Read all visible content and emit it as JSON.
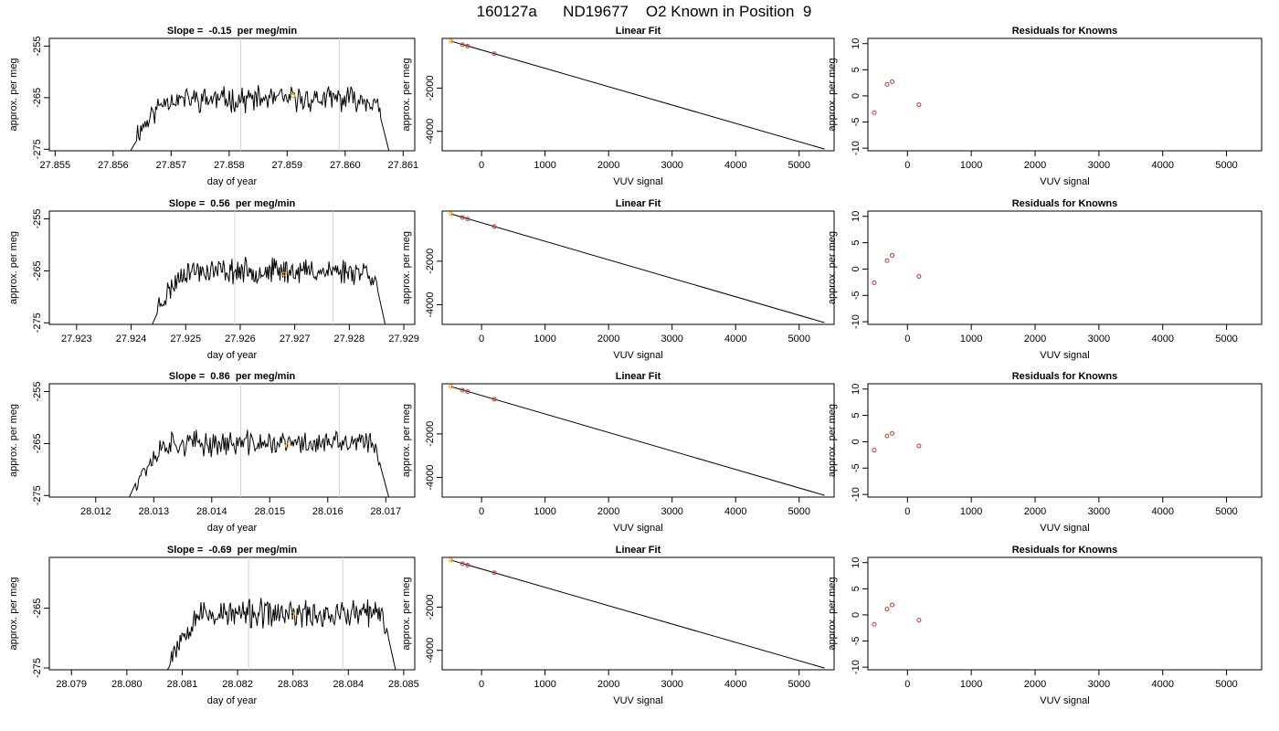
{
  "figure": {
    "title": "160127a      ND19677    O2 Known in Position  9"
  },
  "colors": {
    "trace": "#000000",
    "marker_window": "#d3d3d3",
    "current_point": "#ffa500",
    "known_point": "#c0392b",
    "axes": "#000000"
  },
  "chart_data": [
    {
      "type": "line",
      "row": 1,
      "title": "Slope =  -0.15  per meg/min",
      "xlabel": "day of year",
      "ylabel": "approx. per meg",
      "xlim": [
        27.8549,
        27.8612
      ],
      "ylim": [
        -275.3,
        -253.5
      ],
      "x_ticks": [
        "27.855",
        "27.856",
        "27.857",
        "27.858",
        "27.859",
        "27.860",
        "27.861"
      ],
      "y_ticks": [
        "-255",
        "-265",
        "-275"
      ],
      "trace_start": 27.8562,
      "trace_end": 27.8608,
      "trace_level": -265.3,
      "trace_amplitude": 1.9,
      "seed": 11,
      "window_lines": [
        27.8582,
        27.8599
      ],
      "current_point": {
        "x": 27.8591,
        "y": -264.6
      }
    },
    {
      "type": "scatter",
      "row": 1,
      "title": "Linear Fit",
      "xlabel": "VUV signal",
      "ylabel": "approx. per meg",
      "xlim": [
        -620,
        5550
      ],
      "ylim": [
        -4900,
        300
      ],
      "x_ticks": [
        "0",
        "1000",
        "2000",
        "3000",
        "4000",
        "5000"
      ],
      "y_ticks": [
        "-2000",
        "-4000"
      ],
      "fit_line": {
        "x": [
          -480,
          5400
        ],
        "y": [
          170,
          -4820
        ]
      },
      "points": [
        {
          "x": -480,
          "y": 170,
          "current": true
        },
        {
          "x": -300,
          "y": 5
        },
        {
          "x": -220,
          "y": -60
        },
        {
          "x": 200,
          "y": -410
        }
      ]
    },
    {
      "type": "scatter",
      "row": 1,
      "title": "Residuals for Knowns",
      "xlabel": "VUV signal",
      "ylabel": "approx. per meg",
      "xlim": [
        -620,
        5550
      ],
      "ylim": [
        -10.5,
        11
      ],
      "x_ticks": [
        "0",
        "1000",
        "2000",
        "3000",
        "4000",
        "5000"
      ],
      "y_ticks": [
        "10",
        "5",
        "0",
        "-5",
        "-10"
      ],
      "points": [
        {
          "x": -520,
          "y": -3.2
        },
        {
          "x": -320,
          "y": 2.2
        },
        {
          "x": -240,
          "y": 2.7
        },
        {
          "x": 180,
          "y": -1.7
        }
      ]
    },
    {
      "type": "line",
      "row": 2,
      "title": "Slope =  0.56  per meg/min",
      "xlabel": "day of year",
      "ylabel": "approx. per meg",
      "xlim": [
        27.9225,
        27.9292
      ],
      "ylim": [
        -275.3,
        -253.5
      ],
      "x_ticks": [
        "27.923",
        "27.924",
        "27.925",
        "27.926",
        "27.927",
        "27.928",
        "27.929"
      ],
      "y_ticks": [
        "-255",
        "-265",
        "-275"
      ],
      "trace_start": 27.9243,
      "trace_end": 27.9287,
      "trace_level": -265.0,
      "trace_amplitude": 1.9,
      "seed": 23,
      "window_lines": [
        27.9259,
        27.9277
      ],
      "current_point": {
        "x": 27.9268,
        "y": -265.6
      }
    },
    {
      "type": "scatter",
      "row": 2,
      "title": "Linear Fit",
      "xlabel": "VUV signal",
      "ylabel": "approx. per meg",
      "xlim": [
        -620,
        5550
      ],
      "ylim": [
        -4900,
        300
      ],
      "x_ticks": [
        "0",
        "1000",
        "2000",
        "3000",
        "4000",
        "5000"
      ],
      "y_ticks": [
        "-2000",
        "-4000"
      ],
      "fit_line": {
        "x": [
          -480,
          5400
        ],
        "y": [
          170,
          -4820
        ]
      },
      "points": [
        {
          "x": -480,
          "y": 170,
          "current": true
        },
        {
          "x": -300,
          "y": 5
        },
        {
          "x": -220,
          "y": -60
        },
        {
          "x": 200,
          "y": -410
        }
      ]
    },
    {
      "type": "scatter",
      "row": 2,
      "title": "Residuals for Knowns",
      "xlabel": "VUV signal",
      "ylabel": "approx. per meg",
      "xlim": [
        -620,
        5550
      ],
      "ylim": [
        -10.5,
        11
      ],
      "x_ticks": [
        "0",
        "1000",
        "2000",
        "3000",
        "4000",
        "5000"
      ],
      "y_ticks": [
        "10",
        "5",
        "0",
        "-5",
        "-10"
      ],
      "points": [
        {
          "x": -520,
          "y": -2.6
        },
        {
          "x": -320,
          "y": 1.6
        },
        {
          "x": -240,
          "y": 2.6
        },
        {
          "x": 180,
          "y": -1.4
        }
      ]
    },
    {
      "type": "line",
      "row": 3,
      "title": "Slope =  0.86  per meg/min",
      "xlabel": "day of year",
      "ylabel": "approx. per meg",
      "xlim": [
        28.0112,
        28.0175
      ],
      "ylim": [
        -275.3,
        -253.5
      ],
      "x_ticks": [
        "28.012",
        "28.013",
        "28.014",
        "28.015",
        "28.016",
        "28.017"
      ],
      "y_ticks": [
        "-255",
        "-265",
        "-275"
      ],
      "trace_start": 28.0125,
      "trace_end": 28.0171,
      "trace_level": -265.0,
      "trace_amplitude": 1.9,
      "seed": 37,
      "window_lines": [
        28.0145,
        28.0162
      ],
      "current_point": {
        "x": 28.0153,
        "y": -265.4
      }
    },
    {
      "type": "scatter",
      "row": 3,
      "title": "Linear Fit",
      "xlabel": "VUV signal",
      "ylabel": "approx. per meg",
      "xlim": [
        -620,
        5550
      ],
      "ylim": [
        -4900,
        300
      ],
      "x_ticks": [
        "0",
        "1000",
        "2000",
        "3000",
        "4000",
        "5000"
      ],
      "y_ticks": [
        "-2000",
        "-4000"
      ],
      "fit_line": {
        "x": [
          -480,
          5400
        ],
        "y": [
          170,
          -4820
        ]
      },
      "points": [
        {
          "x": -480,
          "y": 170,
          "current": true
        },
        {
          "x": -300,
          "y": 5
        },
        {
          "x": -220,
          "y": -60
        },
        {
          "x": 200,
          "y": -410
        }
      ]
    },
    {
      "type": "scatter",
      "row": 3,
      "title": "Residuals for Knowns",
      "xlabel": "VUV signal",
      "ylabel": "approx. per meg",
      "xlim": [
        -620,
        5550
      ],
      "ylim": [
        -10.5,
        11
      ],
      "x_ticks": [
        "0",
        "1000",
        "2000",
        "3000",
        "4000",
        "5000"
      ],
      "y_ticks": [
        "10",
        "5",
        "0",
        "-5",
        "-10"
      ],
      "points": [
        {
          "x": -520,
          "y": -1.6
        },
        {
          "x": -320,
          "y": 1.1
        },
        {
          "x": -240,
          "y": 1.6
        },
        {
          "x": 180,
          "y": -0.8
        }
      ]
    },
    {
      "type": "line",
      "row": 4,
      "title": "Slope =  -0.69  per meg/min",
      "xlabel": "day of year",
      "ylabel": "approx. per meg",
      "xlim": [
        28.0786,
        28.0852
      ],
      "ylim": [
        -275.3,
        -256.5
      ],
      "x_ticks": [
        "28.079",
        "28.080",
        "28.081",
        "28.082",
        "28.083",
        "28.084",
        "28.085"
      ],
      "y_ticks": [
        "-265",
        "-275"
      ],
      "trace_start": 28.0806,
      "trace_end": 28.0849,
      "trace_level": -266.0,
      "trace_amplitude": 1.9,
      "seed": 53,
      "window_lines": [
        28.0822,
        28.0839
      ],
      "current_point": {
        "x": 28.083,
        "y": -266.0
      }
    },
    {
      "type": "scatter",
      "row": 4,
      "title": "Linear Fit",
      "xlabel": "VUV signal",
      "ylabel": "approx. per meg",
      "xlim": [
        -620,
        5550
      ],
      "ylim": [
        -4900,
        300
      ],
      "x_ticks": [
        "0",
        "1000",
        "2000",
        "3000",
        "4000",
        "5000"
      ],
      "y_ticks": [
        "-2000",
        "-4000"
      ],
      "fit_line": {
        "x": [
          -480,
          5400
        ],
        "y": [
          170,
          -4820
        ]
      },
      "points": [
        {
          "x": -480,
          "y": 170,
          "current": true
        },
        {
          "x": -300,
          "y": 5
        },
        {
          "x": -220,
          "y": -60
        },
        {
          "x": 200,
          "y": -410
        }
      ]
    },
    {
      "type": "scatter",
      "row": 4,
      "title": "Residuals for Knowns",
      "xlabel": "VUV signal",
      "ylabel": "approx. per meg",
      "xlim": [
        -620,
        5550
      ],
      "ylim": [
        -10.5,
        11
      ],
      "x_ticks": [
        "0",
        "1000",
        "2000",
        "3000",
        "4000",
        "5000"
      ],
      "y_ticks": [
        "10",
        "5",
        "0",
        "-5",
        "-10"
      ],
      "points": [
        {
          "x": -520,
          "y": -1.8
        },
        {
          "x": -320,
          "y": 1.1
        },
        {
          "x": -240,
          "y": 1.9
        },
        {
          "x": 180,
          "y": -1.0
        }
      ]
    }
  ]
}
